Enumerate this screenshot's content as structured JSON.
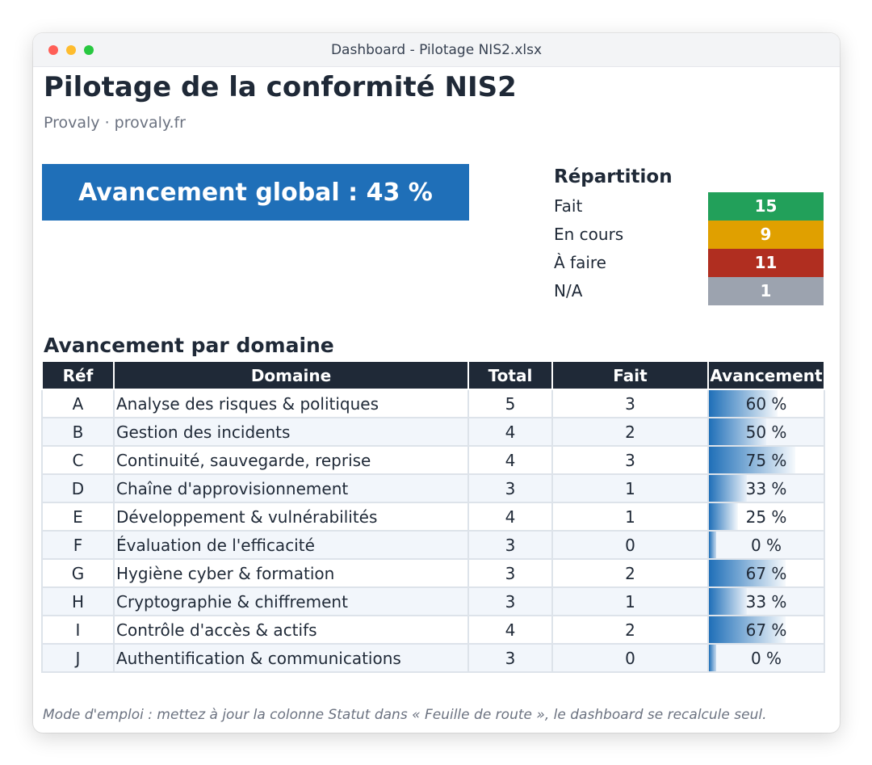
{
  "window": {
    "title": "Dashboard - Pilotage NIS2.xlsx"
  },
  "header": {
    "title": "Pilotage de la conformité NIS2",
    "subtitle": "Provaly · provaly.fr"
  },
  "global": {
    "label": "Avancement global : 43 %",
    "value_percent": 43
  },
  "repartition": {
    "title": "Répartition",
    "items": [
      {
        "label": "Fait",
        "value": "15",
        "color": "#22a05a"
      },
      {
        "label": "En cours",
        "value": "9",
        "color": "#e0a000"
      },
      {
        "label": "À faire",
        "value": "11",
        "color": "#b02e20"
      },
      {
        "label": "N/A",
        "value": "1",
        "color": "#9ca3af"
      }
    ]
  },
  "domains": {
    "title": "Avancement par domaine",
    "headers": {
      "ref": "Réf",
      "domain": "Domaine",
      "total": "Total",
      "done": "Fait",
      "progress": "Avancement"
    },
    "rows": [
      {
        "ref": "A",
        "domain": "Analyse des risques & politiques",
        "total": "5",
        "done": "3",
        "progress": "60 %",
        "fraction": 0.6
      },
      {
        "ref": "B",
        "domain": "Gestion des incidents",
        "total": "4",
        "done": "2",
        "progress": "50 %",
        "fraction": 0.5
      },
      {
        "ref": "C",
        "domain": "Continuité, sauvegarde, reprise",
        "total": "4",
        "done": "3",
        "progress": "75 %",
        "fraction": 0.75
      },
      {
        "ref": "D",
        "domain": "Chaîne d'approvisionnement",
        "total": "3",
        "done": "1",
        "progress": "33 %",
        "fraction": 0.33
      },
      {
        "ref": "E",
        "domain": "Développement & vulnérabilités",
        "total": "4",
        "done": "1",
        "progress": "25 %",
        "fraction": 0.25
      },
      {
        "ref": "F",
        "domain": "Évaluation de l'efficacité",
        "total": "3",
        "done": "0",
        "progress": "0 %",
        "fraction": 0.0
      },
      {
        "ref": "G",
        "domain": "Hygiène cyber & formation",
        "total": "3",
        "done": "2",
        "progress": "67 %",
        "fraction": 0.67
      },
      {
        "ref": "H",
        "domain": "Cryptographie & chiffrement",
        "total": "3",
        "done": "1",
        "progress": "33 %",
        "fraction": 0.33
      },
      {
        "ref": "I",
        "domain": "Contrôle d'accès & actifs",
        "total": "4",
        "done": "2",
        "progress": "67 %",
        "fraction": 0.67
      },
      {
        "ref": "J",
        "domain": "Authentification & communications",
        "total": "3",
        "done": "0",
        "progress": "0 %",
        "fraction": 0.0
      }
    ]
  },
  "footer": {
    "note": "Mode d'emploi : mettez à jour la colonne Statut dans « Feuille de route », le dashboard se recalcule seul."
  }
}
